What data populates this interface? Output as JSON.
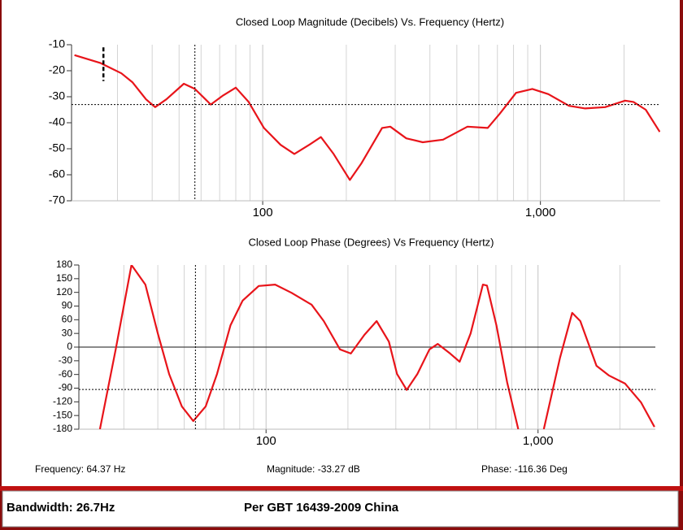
{
  "chart_data": [
    {
      "type": "line",
      "title": "Closed Loop Magnitude (Decibels) Vs. Frequency (Hertz)",
      "log_x": true,
      "grid": "x",
      "color": "#e8141a",
      "xlim": [
        20.5,
        2700
      ],
      "xticks": [
        100,
        {
          "value": 1000,
          "label": "1,000"
        }
      ],
      "xminor": [
        30,
        40,
        50,
        60,
        70,
        80,
        90,
        200,
        300,
        400,
        500,
        600,
        700,
        800,
        900,
        2000
      ],
      "ylim": [
        -70,
        -10
      ],
      "yticks": [
        -10,
        -20,
        -30,
        -40,
        -50,
        -60,
        -70
      ],
      "x": [
        21,
        26,
        31,
        34,
        38,
        41,
        45,
        52,
        57,
        65,
        72,
        80,
        89,
        101,
        116,
        130,
        147,
        162,
        180,
        206,
        227,
        269,
        288,
        329,
        377,
        446,
        546,
        646,
        714,
        817,
        935,
        1068,
        1267,
        1449,
        1709,
        2018,
        2163,
        2394,
        2690
      ],
      "series": [
        {
          "values": [
            -14,
            -17,
            -21,
            -24.5,
            -31,
            -34,
            -31,
            -25,
            -27,
            -33,
            -29.5,
            -26.5,
            -32,
            -42,
            -48.5,
            -52,
            -48.5,
            -45.5,
            -52,
            -62,
            -55.5,
            -42,
            -41.5,
            -46,
            -47.5,
            -46.5,
            -41.5,
            -42,
            -36.5,
            -28.5,
            -27,
            -29,
            -33.5,
            -34.5,
            -34,
            -31.5,
            -32,
            -35,
            -43.5
          ]
        }
      ],
      "cursor": {
        "x": 57,
        "y": -33
      },
      "marker": {
        "x": 26.7,
        "y": [
          -11,
          -24
        ]
      }
    },
    {
      "type": "line",
      "title": "Closed Loop Phase (Degrees) Vs Frequency (Hertz)",
      "log_x": true,
      "grid": "x",
      "color": "#e8141a",
      "xlim": [
        20.5,
        2700
      ],
      "xticks": [
        100,
        {
          "value": 1000,
          "label": "1,000"
        }
      ],
      "xminor": [
        30,
        40,
        50,
        60,
        70,
        80,
        90,
        200,
        300,
        400,
        500,
        600,
        700,
        800,
        900,
        2000
      ],
      "ylim": [
        -180,
        180
      ],
      "yticks": [
        180,
        150,
        120,
        90,
        60,
        30,
        0,
        -30,
        -60,
        -90,
        -120,
        -150,
        -180
      ],
      "x": [
        24.5,
        28,
        32,
        36,
        40,
        44,
        49,
        54,
        60,
        66,
        74,
        82,
        94,
        108,
        124,
        147,
        163,
        187,
        205,
        230,
        255,
        283,
        303,
        329,
        360,
        399,
        428,
        475,
        515,
        565,
        627,
        649,
        703,
        770,
        846,
        950,
        1050,
        1205,
        1335,
        1430,
        1640,
        1820,
        2090,
        2390,
        2680
      ],
      "series": [
        {
          "values": [
            -180,
            -5,
            180,
            137,
            30,
            -59,
            -130,
            -162,
            -130,
            -59,
            48,
            102,
            134,
            137,
            119,
            93,
            57,
            -5,
            -14,
            27,
            57,
            12,
            -59,
            -94,
            -59,
            -5,
            7,
            -14,
            -32,
            30,
            137,
            135,
            48,
            -77,
            -180,
            null,
            -180,
            -23,
            75,
            57,
            -41,
            -62,
            -80,
            -121,
            -175
          ]
        }
      ],
      "cursor": {
        "x": 55,
        "y": -93
      }
    }
  ],
  "readout": {
    "frequency": "Frequency: 64.37 Hz",
    "magnitude": "Magnitude: -33.27 dB",
    "phase": "Phase: -116.36 Deg"
  },
  "footer": {
    "bandwidth": "Bandwidth: 26.7Hz",
    "standard": "Per GBT 16439-2009 China"
  }
}
